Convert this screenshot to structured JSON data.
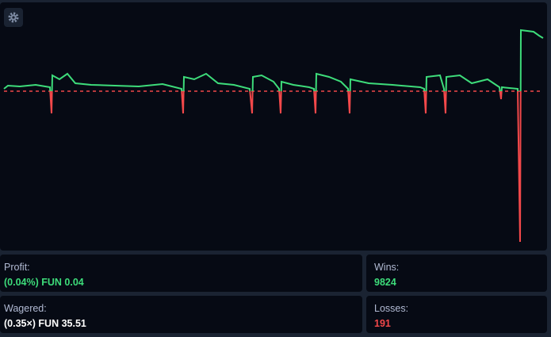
{
  "chart_data": {
    "type": "line",
    "x": [
      0,
      5,
      20,
      40,
      58,
      60,
      61,
      70,
      80,
      90,
      110,
      140,
      170,
      200,
      224,
      226,
      227,
      240,
      255,
      270,
      290,
      310,
      313,
      314,
      325,
      340,
      347,
      349,
      350,
      365,
      385,
      391,
      393,
      394,
      410,
      425,
      434,
      436,
      437,
      460,
      490,
      525,
      530,
      532,
      533,
      550,
      555,
      557,
      558,
      575,
      590,
      610,
      625,
      627,
      628,
      648,
      651,
      652,
      668,
      675,
      680
    ],
    "values": [
      3,
      7,
      6,
      8,
      5,
      -28,
      20,
      15,
      22,
      10,
      8,
      7,
      6,
      9,
      3,
      -28,
      18,
      15,
      22,
      10,
      8,
      3,
      -28,
      18,
      20,
      12,
      3,
      -28,
      12,
      8,
      5,
      3,
      -28,
      22,
      18,
      12,
      3,
      -28,
      15,
      10,
      8,
      5,
      3,
      -28,
      18,
      20,
      3,
      -28,
      18,
      20,
      10,
      15,
      5,
      -10,
      5,
      3,
      -190,
      77,
      75,
      70,
      67
    ],
    "xlim": [
      0,
      680
    ],
    "ylim": [
      -200,
      110
    ],
    "up_color": "#3ddc7a",
    "down_color": "#f2484a"
  },
  "stats": {
    "profit": {
      "label": "Profit:",
      "value": "(0.04%) FUN 0.04"
    },
    "wins": {
      "label": "Wins:",
      "value": 9824
    },
    "wagered": {
      "label": "Wagered:",
      "value": "(0.35×) FUN 35.51"
    },
    "losses": {
      "label": "Losses:",
      "value": 191
    }
  }
}
